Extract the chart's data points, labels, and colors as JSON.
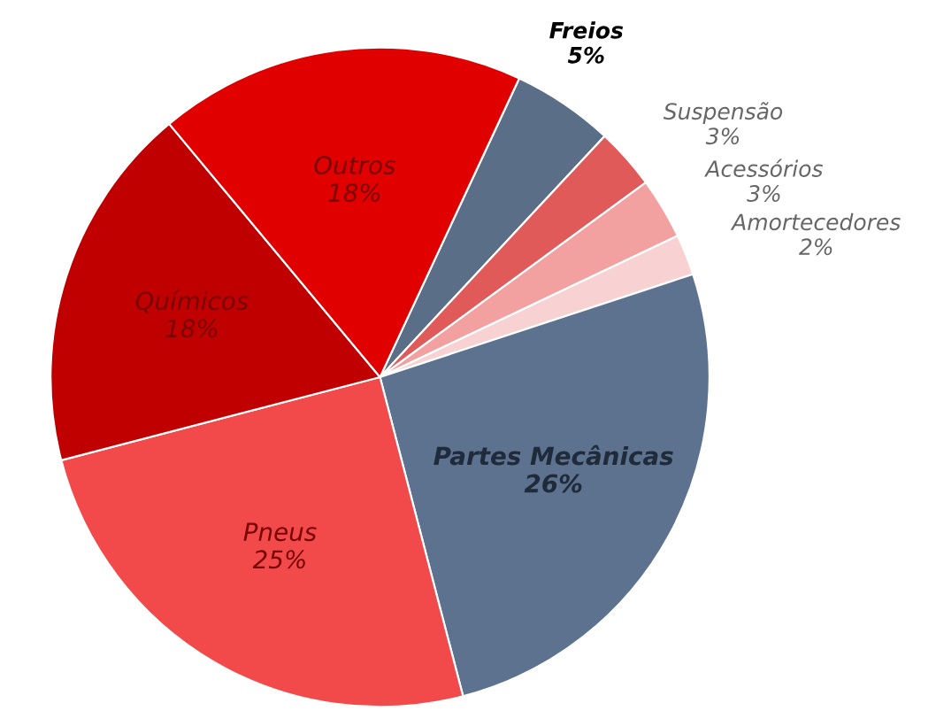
{
  "chart_data": {
    "type": "pie",
    "categories": [
      "Freios",
      "Suspensão",
      "Acessórios",
      "Amortecedores",
      "Partes Mecânicas",
      "Pneus",
      "Químicos",
      "Outros"
    ],
    "values": [
      5,
      3,
      3,
      2,
      26,
      25,
      18,
      18
    ],
    "value_labels": [
      "5%",
      "3%",
      "3%",
      "2%",
      "26%",
      "25%",
      "18%",
      "18%"
    ],
    "colors": [
      "#5b6e88",
      "#e05a5a",
      "#f2a0a0",
      "#f8d2d2",
      "#5d728e",
      "#f24a4a",
      "#c00000",
      "#e00000"
    ],
    "legend": false
  }
}
